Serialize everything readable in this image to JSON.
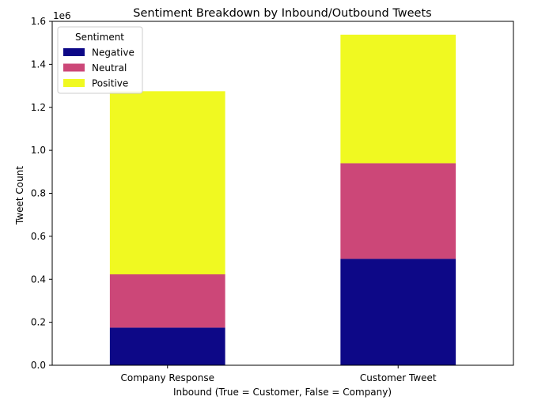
{
  "chart_data": {
    "type": "bar",
    "stacked": true,
    "title": "Sentiment Breakdown by Inbound/Outbound Tweets",
    "xlabel": "Inbound (True = Customer, False = Company)",
    "ylabel": "Tweet Count",
    "y_offset_label": "1e6",
    "ylim": [
      0,
      1.6
    ],
    "yticks": [
      "0.0",
      "0.2",
      "0.4",
      "0.6",
      "0.8",
      "1.0",
      "1.2",
      "1.4",
      "1.6"
    ],
    "categories": [
      "Company Response",
      "Customer Tweet"
    ],
    "series": [
      {
        "name": "Negative",
        "color": "#0d0887",
        "values": [
          0.175,
          0.495
        ]
      },
      {
        "name": "Neutral",
        "color": "#cc4778",
        "values": [
          0.248,
          0.445
        ]
      },
      {
        "name": "Positive",
        "color": "#f0f921",
        "values": [
          0.852,
          0.598
        ]
      }
    ],
    "legend": {
      "title": "Sentiment",
      "position": "top-left"
    },
    "grid": false
  }
}
